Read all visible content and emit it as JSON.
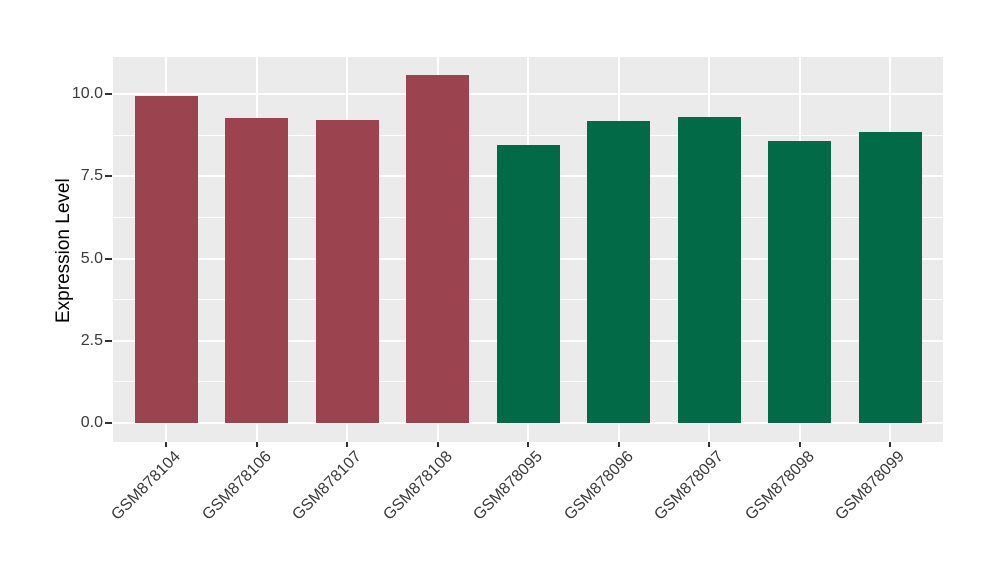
{
  "chart_data": {
    "type": "bar",
    "title": "",
    "xlabel": "",
    "ylabel": "Expression Level",
    "categories": [
      "GSM878104",
      "GSM878106",
      "GSM878107",
      "GSM878108",
      "GSM878095",
      "GSM878096",
      "GSM878097",
      "GSM878098",
      "GSM878099"
    ],
    "values": [
      9.95,
      9.28,
      9.22,
      10.58,
      8.45,
      9.17,
      9.3,
      8.56,
      8.83
    ],
    "groups": [
      "group1",
      "group1",
      "group1",
      "group1",
      "group2",
      "group2",
      "group2",
      "group2",
      "group2"
    ],
    "group_colors": {
      "group1": "#9B4450",
      "group2": "#036A47"
    },
    "ylim": [
      -0.58,
      11.12
    ],
    "y_ticks": {
      "major_values": [
        0,
        2.5,
        5,
        7.5,
        10
      ],
      "major_labels": [
        "0.0",
        "2.5",
        "5.0",
        "7.5",
        "10.0"
      ],
      "minor_values": [
        1.25,
        3.75,
        6.25,
        8.75
      ]
    },
    "legend": "none",
    "grid": "on",
    "style": {
      "panel_background": "#EBEBEB",
      "gridline_color": "#FFFFFF",
      "axis_text_color": "#3A3A3A",
      "tick_mark_color": "#333333",
      "x_label_rotation_deg": 45
    }
  }
}
